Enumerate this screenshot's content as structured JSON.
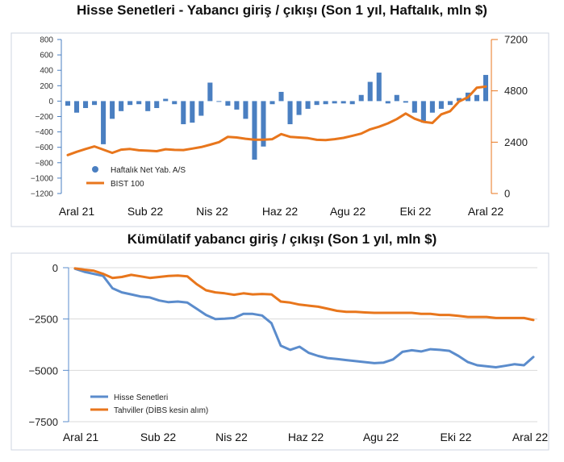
{
  "chart_data": [
    {
      "type": "bar+line",
      "title": "Hisse Senetleri - Yabancı giriş / çıkışı (Son 1 yıl, Haftalık, mln $)",
      "x_tick_labels": [
        "Aral 21",
        "Sub 22",
        "Nis 22",
        "Haz 22",
        "Agu 22",
        "Eki 22",
        "Aral 22"
      ],
      "y_left": {
        "ticks": [
          800,
          600,
          400,
          200,
          0,
          -200,
          -400,
          -600,
          -800,
          -1000,
          -1200
        ],
        "ylim": [
          -1200,
          800
        ]
      },
      "y_right": {
        "ticks": [
          7200,
          4800,
          2400,
          0
        ],
        "ylim": [
          0,
          7200
        ]
      },
      "series": [
        {
          "name": "Haftalık Net Yab. A/S",
          "kind": "bar",
          "axis": "left",
          "color": "#4a7fc1",
          "values": [
            -60,
            -150,
            -90,
            -50,
            -560,
            -230,
            -130,
            -50,
            -40,
            -130,
            -90,
            30,
            -40,
            -300,
            -280,
            -190,
            240,
            -10,
            -60,
            -110,
            -230,
            -760,
            -590,
            -40,
            120,
            -300,
            -180,
            -100,
            -50,
            -40,
            -30,
            -30,
            -40,
            80,
            250,
            370,
            -30,
            80,
            -20,
            -150,
            -280,
            -150,
            -100,
            -50,
            40,
            110,
            80,
            340
          ]
        },
        {
          "name": "BIST 100",
          "kind": "line",
          "axis": "right",
          "color": "#e8761c",
          "values": [
            1800,
            1950,
            2080,
            2200,
            2050,
            1900,
            2050,
            2080,
            2020,
            2000,
            1980,
            2070,
            2040,
            2030,
            2100,
            2170,
            2280,
            2400,
            2650,
            2620,
            2560,
            2520,
            2520,
            2540,
            2780,
            2650,
            2620,
            2590,
            2510,
            2500,
            2540,
            2600,
            2700,
            2800,
            3000,
            3120,
            3280,
            3480,
            3740,
            3500,
            3350,
            3300,
            3700,
            3850,
            4300,
            4500,
            4950,
            5000
          ]
        }
      ],
      "legend": {
        "position": "bottom-left"
      }
    },
    {
      "type": "line",
      "title": "Kümülatif yabancı giriş / çıkışı (Son 1 yıl, mln $)",
      "x_tick_labels": [
        "Aral 21",
        "Sub 22",
        "Nis 22",
        "Haz 22",
        "Agu 22",
        "Eki 22",
        "Aral 22"
      ],
      "y": {
        "ticks": [
          0,
          -2500,
          -5000,
          -7500
        ],
        "ylim": [
          -7500,
          0
        ]
      },
      "grid": true,
      "series": [
        {
          "name": "Hisse Senetleri",
          "color": "#5b8ccc",
          "values": [
            -50,
            -200,
            -300,
            -400,
            -1000,
            -1200,
            -1300,
            -1400,
            -1450,
            -1600,
            -1680,
            -1650,
            -1700,
            -2000,
            -2300,
            -2500,
            -2480,
            -2450,
            -2250,
            -2250,
            -2330,
            -2700,
            -3800,
            -4000,
            -3850,
            -4150,
            -4300,
            -4400,
            -4450,
            -4500,
            -4550,
            -4600,
            -4650,
            -4620,
            -4470,
            -4100,
            -4020,
            -4080,
            -3970,
            -4000,
            -4050,
            -4300,
            -4600,
            -4750,
            -4800,
            -4850,
            -4780,
            -4700,
            -4750,
            -4350
          ]
        },
        {
          "name": "Tahviller (DİBS kesin alım)",
          "color": "#e8761c",
          "values": [
            -30,
            -100,
            -150,
            -300,
            -500,
            -450,
            -350,
            -420,
            -500,
            -450,
            -400,
            -380,
            -420,
            -800,
            -1100,
            -1200,
            -1250,
            -1320,
            -1250,
            -1300,
            -1280,
            -1300,
            -1650,
            -1700,
            -1800,
            -1850,
            -1900,
            -2000,
            -2100,
            -2150,
            -2150,
            -2180,
            -2200,
            -2200,
            -2200,
            -2200,
            -2200,
            -2250,
            -2250,
            -2300,
            -2300,
            -2350,
            -2400,
            -2400,
            -2400,
            -2450,
            -2450,
            -2450,
            -2450,
            -2550
          ]
        }
      ],
      "legend": {
        "position": "bottom-left"
      }
    }
  ]
}
